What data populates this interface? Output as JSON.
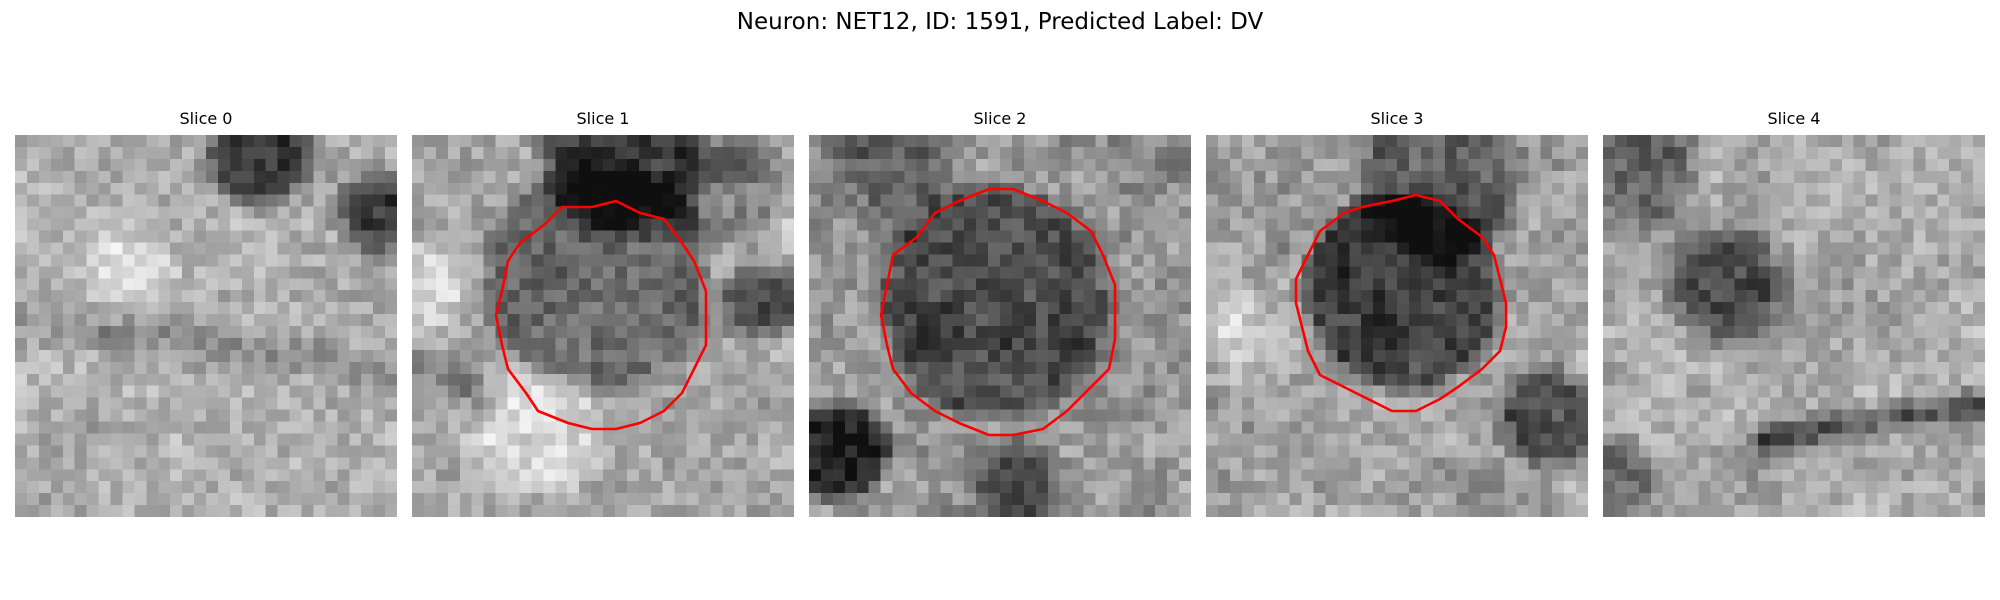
{
  "title": "Neuron: NET12, ID: 1591, Predicted Label: DV",
  "overlay_color": "#ff0000",
  "panels": [
    {
      "label": "Slice 0",
      "has_contour": false
    },
    {
      "label": "Slice 1",
      "has_contour": true
    },
    {
      "label": "Slice 2",
      "has_contour": true
    },
    {
      "label": "Slice 3",
      "has_contour": true
    },
    {
      "label": "Slice 4",
      "has_contour": false
    }
  ]
}
